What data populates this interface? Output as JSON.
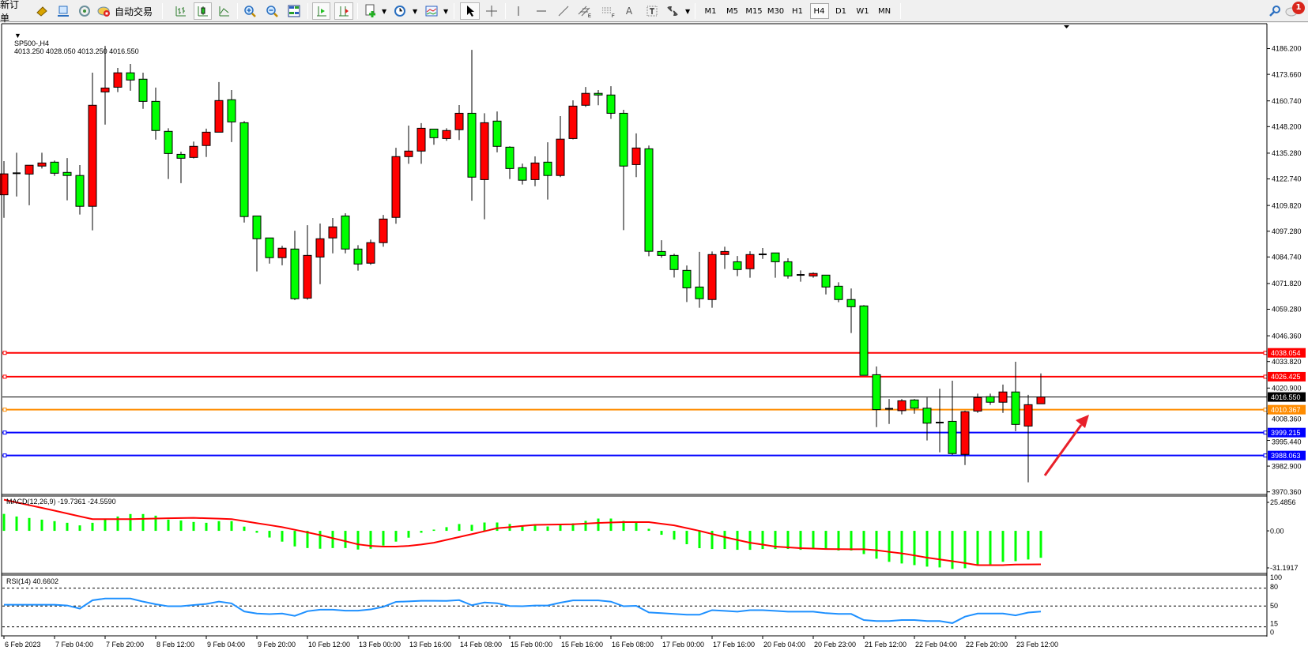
{
  "toolbar": {
    "new_order_label": "新订单",
    "auto_trading_label": "自动交易",
    "timeframes": [
      "M1",
      "M5",
      "M15",
      "M30",
      "H1",
      "H4",
      "D1",
      "W1",
      "MN"
    ],
    "active_timeframe": "H4",
    "notification_count": "1"
  },
  "chart": {
    "symbol": "SP500-,H4",
    "ohlc": "4013.250 4028.050 4013.250 4016.550",
    "price_ticks": [
      "4186.200",
      "4173.660",
      "4160.740",
      "4148.200",
      "4135.280",
      "4122.740",
      "4109.820",
      "4097.280",
      "4084.740",
      "4071.820",
      "4059.280",
      "4046.360",
      "4033.820",
      "4020.900",
      "4008.360",
      "3995.440",
      "3982.900",
      "3970.360"
    ],
    "levels": [
      {
        "price": 4038.054,
        "label": "4038.054",
        "color": "#ff0000"
      },
      {
        "price": 4026.425,
        "label": "4026.425",
        "color": "#ff0000"
      },
      {
        "price": 4016.55,
        "label": "4016.550",
        "color": "#000000"
      },
      {
        "price": 4010.367,
        "label": "4010.367",
        "color": "#ff8c00"
      },
      {
        "price": 3999.215,
        "label": "3999.215",
        "color": "#0000ff"
      },
      {
        "price": 3988.063,
        "label": "3988.063",
        "color": "#0000ff"
      }
    ],
    "time_labels": [
      "6 Feb 2023",
      "7 Feb 04:00",
      "7 Feb 20:00",
      "8 Feb 12:00",
      "9 Feb 04:00",
      "9 Feb 20:00",
      "10 Feb 12:00",
      "13 Feb 00:00",
      "13 Feb 16:00",
      "14 Feb 08:00",
      "15 Feb 00:00",
      "15 Feb 16:00",
      "16 Feb 08:00",
      "17 Feb 00:00",
      "17 Feb 16:00",
      "20 Feb 04:00",
      "20 Feb 23:00",
      "21 Feb 12:00",
      "22 Feb 04:00",
      "22 Feb 20:00",
      "23 Feb 12:00"
    ],
    "colors": {
      "bull": "#ff0000",
      "bear": "#00ff00",
      "macd_hist": "#00ff00",
      "macd_signal": "#ff0000",
      "rsi": "#1e90ff",
      "arrow": "#e8202a"
    }
  },
  "macd": {
    "label": "MACD(12,26,9) -19.7361 -24.5590",
    "axis": [
      "25.4856",
      "0.00",
      "-31.1917"
    ],
    "range": [
      -31.1917,
      25.4856
    ],
    "histogram": [
      12.4,
      10.5,
      9.4,
      8.2,
      7.1,
      5.9,
      4.0,
      5.9,
      8.2,
      10.5,
      12.3,
      12.3,
      11.1,
      8.2,
      7.6,
      6.5,
      5.9,
      7.1,
      7.1,
      3.1,
      -1.4,
      -4.9,
      -7.9,
      -11.4,
      -12.6,
      -13.1,
      -12.6,
      -12.6,
      -13.7,
      -13.1,
      -10.8,
      -7.9,
      -5.0,
      -1.4,
      0.9,
      2.7,
      5.0,
      4.4,
      6.1,
      6.1,
      5.0,
      3.2,
      4.4,
      3.2,
      4.4,
      5.5,
      7.3,
      9.0,
      9.0,
      7.3,
      6.1,
      1.5,
      -2.9,
      -6.4,
      -9.8,
      -12.7,
      -13.3,
      -13.3,
      -13.9,
      -13.9,
      -13.3,
      -13.3,
      -13.3,
      -13.9,
      -12.7,
      -13.3,
      -14.4,
      -14.4,
      -17.0,
      -20.4,
      -22.7,
      -23.9,
      -25.1,
      -26.2,
      -26.8,
      -27.9,
      -27.4,
      -25.1,
      -24.5,
      -22.7,
      -22.2,
      -21.0,
      -19.7361
    ],
    "signal": [
      22.8,
      20.8,
      18.8,
      16.8,
      14.8,
      12.7,
      10.6,
      8.6,
      8.6,
      8.6,
      8.6,
      8.8,
      9.0,
      9.2,
      9.4,
      9.5,
      9.2,
      8.9,
      8.6,
      7.1,
      5.6,
      4.2,
      2.7,
      0.8,
      -1.1,
      -3.1,
      -5.4,
      -7.6,
      -9.9,
      -11.0,
      -11.5,
      -11.5,
      -11.0,
      -10.0,
      -8.7,
      -6.6,
      -4.5,
      -2.4,
      -0.3,
      1.9,
      2.7,
      3.6,
      4.4,
      4.5,
      4.7,
      4.8,
      5.3,
      5.8,
      6.1,
      6.4,
      6.4,
      6.4,
      5.2,
      4.0,
      2.0,
      0.0,
      -2.3,
      -4.6,
      -6.7,
      -8.7,
      -10.1,
      -11.5,
      -12.1,
      -12.7,
      -13.0,
      -13.3,
      -13.4,
      -13.5,
      -13.5,
      -14.2,
      -15.4,
      -16.5,
      -18.0,
      -19.6,
      -20.9,
      -22.2,
      -23.6,
      -25.1,
      -25.1,
      -25.1,
      -24.7,
      -24.6,
      -24.559
    ]
  },
  "rsi": {
    "label": "RSI(14) 40.6602",
    "axis": [
      "100",
      "80",
      "50",
      "15",
      "0"
    ],
    "levels": [
      80,
      50,
      15
    ],
    "values": [
      52.2,
      52.2,
      52.2,
      52.2,
      52.2,
      50.9,
      45.7,
      59.6,
      62.6,
      62.6,
      62.6,
      57.4,
      53.0,
      49.6,
      49.6,
      51.7,
      53.5,
      57.4,
      54.4,
      40.9,
      37.4,
      36.5,
      37.4,
      33.5,
      41.3,
      43.9,
      43.9,
      42.2,
      42.2,
      44.3,
      48.7,
      57.0,
      57.8,
      58.7,
      58.7,
      58.6,
      59.9,
      51.3,
      56.0,
      54.7,
      50.0,
      49.6,
      50.9,
      50.9,
      55.6,
      59.4,
      59.4,
      59.4,
      57.3,
      49.6,
      50.4,
      39.3,
      38.0,
      36.7,
      35.4,
      35.4,
      43.1,
      41.9,
      40.6,
      43.1,
      43.1,
      41.9,
      40.6,
      40.6,
      40.6,
      38.0,
      36.7,
      36.7,
      26.5,
      24.8,
      24.8,
      26.5,
      26.5,
      24.8,
      24.8,
      21.3,
      32.2,
      37.4,
      37.4,
      37.4,
      34.3,
      39.1,
      40.66
    ]
  },
  "chart_data": {
    "type": "candlestick",
    "fields": [
      "open",
      "high",
      "low",
      "close"
    ],
    "ylim": [
      3970.36,
      4186.2
    ],
    "candles": [
      [
        4115.0,
        4131.4,
        4103.8,
        4125.2
      ],
      [
        4125.5,
        4135.5,
        4114.2,
        4125.5
      ],
      [
        4125.1,
        4129.4,
        4109.9,
        4129.4
      ],
      [
        4129.0,
        4135.5,
        4127.8,
        4130.5
      ],
      [
        4130.9,
        4131.7,
        4124.2,
        4125.5
      ],
      [
        4125.9,
        4132.9,
        4112.3,
        4124.4
      ],
      [
        4124.4,
        4129.5,
        4105.4,
        4109.4
      ],
      [
        4109.4,
        4174.5,
        4097.7,
        4158.6
      ],
      [
        4165.1,
        4187.5,
        4149.2,
        4167.0
      ],
      [
        4167.4,
        4176.8,
        4165.0,
        4174.4
      ],
      [
        4174.4,
        4178.7,
        4165.7,
        4170.9
      ],
      [
        4171.3,
        4174.5,
        4156.9,
        4160.5
      ],
      [
        4160.5,
        4167.2,
        4141.9,
        4146.3
      ],
      [
        4145.9,
        4147.4,
        4122.7,
        4135.1
      ],
      [
        4134.7,
        4136.0,
        4120.7,
        4132.8
      ],
      [
        4133.2,
        4140.9,
        4132.7,
        4138.6
      ],
      [
        4139.0,
        4147.2,
        4133.4,
        4145.5
      ],
      [
        4145.5,
        4169.9,
        4145.5,
        4160.9
      ],
      [
        4161.3,
        4166.0,
        4140.7,
        4150.5
      ],
      [
        4150.1,
        4150.9,
        4101.5,
        4104.4
      ],
      [
        4104.7,
        4104.7,
        4077.7,
        4093.6
      ],
      [
        4094.0,
        4094.0,
        4081.5,
        4084.4
      ],
      [
        4084.4,
        4090.2,
        4080.7,
        4089.0
      ],
      [
        4088.6,
        4097.5,
        4063.7,
        4064.4
      ],
      [
        4064.7,
        4100.2,
        4063.9,
        4085.5
      ],
      [
        4084.7,
        4101.0,
        4071.5,
        4093.6
      ],
      [
        4094.0,
        4103.7,
        4086.5,
        4099.4
      ],
      [
        4104.7,
        4106.0,
        4086.5,
        4088.6
      ],
      [
        4088.6,
        4090.5,
        4078.1,
        4081.3
      ],
      [
        4081.7,
        4093.2,
        4080.9,
        4091.7
      ],
      [
        4091.7,
        4105.2,
        4089.7,
        4103.2
      ],
      [
        4104.0,
        4137.9,
        4100.9,
        4133.6
      ],
      [
        4133.6,
        4148.7,
        4130.1,
        4136.3
      ],
      [
        4136.3,
        4149.9,
        4130.1,
        4147.4
      ],
      [
        4147.0,
        4147.0,
        4139.4,
        4142.8
      ],
      [
        4142.4,
        4147.4,
        4141.3,
        4146.3
      ],
      [
        4146.7,
        4158.7,
        4141.7,
        4154.7
      ],
      [
        4154.7,
        4185.6,
        4112.1,
        4123.6
      ],
      [
        4122.4,
        4154.7,
        4103.1,
        4150.1
      ],
      [
        4150.9,
        4155.6,
        4135.7,
        4138.6
      ],
      [
        4138.2,
        4138.6,
        4122.7,
        4127.8
      ],
      [
        4128.2,
        4130.2,
        4120.0,
        4122.1
      ],
      [
        4122.4,
        4133.7,
        4119.2,
        4130.5
      ],
      [
        4130.9,
        4140.6,
        4112.7,
        4124.4
      ],
      [
        4124.4,
        4153.3,
        4123.6,
        4142.1
      ],
      [
        4142.4,
        4161.0,
        4142.0,
        4158.2
      ],
      [
        4158.6,
        4167.5,
        4157.8,
        4164.4
      ],
      [
        4164.4,
        4166.0,
        4158.6,
        4163.6
      ],
      [
        4163.6,
        4167.9,
        4152.0,
        4154.7
      ],
      [
        4154.7,
        4156.4,
        4097.8,
        4129.0
      ],
      [
        4129.7,
        4144.9,
        4123.6,
        4137.8
      ],
      [
        4137.4,
        4139.0,
        4085.1,
        4087.5
      ],
      [
        4087.4,
        4092.9,
        4084.4,
        4085.5
      ],
      [
        4085.5,
        4086.3,
        4074.7,
        4078.6
      ],
      [
        4078.2,
        4080.6,
        4062.8,
        4069.7
      ],
      [
        4070.1,
        4087.2,
        4060.0,
        4064.4
      ],
      [
        4064.0,
        4087.4,
        4060.0,
        4085.9
      ],
      [
        4085.9,
        4089.7,
        4078.9,
        4087.4
      ],
      [
        4082.4,
        4085.2,
        4075.4,
        4078.6
      ],
      [
        4079.0,
        4087.5,
        4074.6,
        4085.9
      ],
      [
        4086.0,
        4089.1,
        4083.8,
        4086.0
      ],
      [
        4086.7,
        4086.7,
        4074.6,
        4082.4
      ],
      [
        4082.4,
        4084.1,
        4074.2,
        4075.5
      ],
      [
        4076.0,
        4078.2,
        4072.7,
        4076.0
      ],
      [
        4075.5,
        4077.2,
        4074.6,
        4076.7
      ],
      [
        4075.9,
        4075.9,
        4066.5,
        4070.1
      ],
      [
        4070.5,
        4072.4,
        4062.7,
        4064.0
      ],
      [
        4064.0,
        4069.4,
        4047.7,
        4060.5
      ],
      [
        4060.9,
        4061.3,
        4027.1,
        4027.1
      ],
      [
        4027.4,
        4031.4,
        4001.9,
        4010.4
      ],
      [
        4010.8,
        4015.6,
        4003.4,
        4010.8
      ],
      [
        4009.9,
        4015.6,
        4008.1,
        4014.7
      ],
      [
        4015.1,
        4015.6,
        4008.4,
        4011.1
      ],
      [
        4011.1,
        4016.3,
        3995.4,
        4003.8
      ],
      [
        4004.1,
        4020.6,
        3989.6,
        4004.1
      ],
      [
        4004.7,
        4024.5,
        3988.3,
        3989.0
      ],
      [
        3988.6,
        4009.9,
        3983.4,
        4009.4
      ],
      [
        4009.7,
        4018.2,
        4008.8,
        4016.3
      ],
      [
        4016.7,
        4018.2,
        4012.7,
        4014.0
      ],
      [
        4014.0,
        4022.6,
        4008.8,
        4019.0
      ],
      [
        4019.0,
        4033.7,
        3999.9,
        4003.2
      ],
      [
        4002.4,
        4017.6,
        3975.0,
        4012.8
      ],
      [
        4013.25,
        4028.05,
        4013.25,
        4016.55
      ]
    ]
  }
}
